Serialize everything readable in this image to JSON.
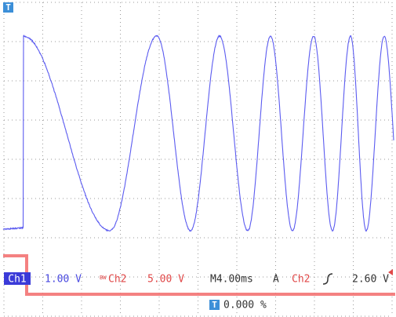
{
  "screen": {
    "trigger_marker": "T",
    "status": {
      "ch1": "Ch1",
      "ch1_scale": "1.00 V",
      "bw": "BW",
      "ch2": "Ch2",
      "ch2_scale": "5.00 V",
      "timebase": "M4.00ms",
      "mode": "A",
      "trigger_source": "Ch2",
      "trigger_level": "2.60 V",
      "trigger_position_marker": "T",
      "trigger_position": "0.000 %"
    }
  }
}
